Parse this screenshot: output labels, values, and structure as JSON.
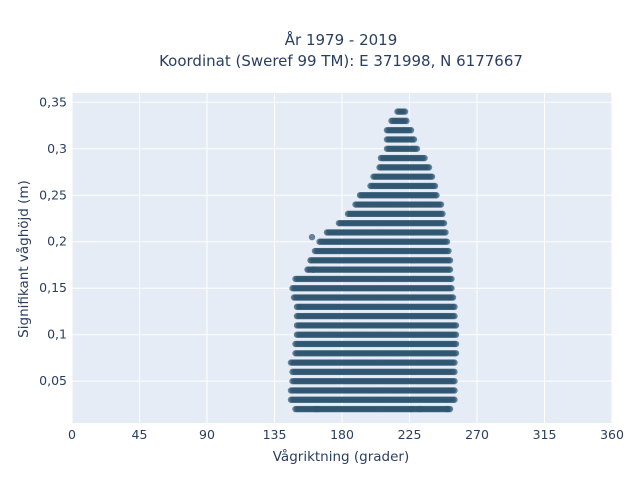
{
  "chart_data": {
    "type": "scatter",
    "title_lines": [
      "År 1979 - 2019",
      "Koordinat (Sweref 99 TM): E 371998, N 6177667"
    ],
    "xlabel": "Vågriktning (grader)",
    "ylabel": "Signifikant våghöjd (m)",
    "xlim": [
      0,
      360
    ],
    "ylim": [
      0.005,
      0.36
    ],
    "xticks": [
      0,
      45,
      90,
      135,
      180,
      225,
      270,
      315,
      360
    ],
    "xtick_labels": [
      "0",
      "45",
      "90",
      "135",
      "180",
      "225",
      "270",
      "315",
      "360"
    ],
    "yticks": [
      0.05,
      0.1,
      0.15,
      0.2,
      0.25,
      0.3,
      0.35
    ],
    "ytick_labels": [
      "0,05",
      "0,1",
      "0,15",
      "0,2",
      "0,25",
      "0,3",
      "0,35"
    ],
    "grid": true,
    "background": "#e5ecf6",
    "marker_color": "#2f5670",
    "envelope": [
      {
        "y": 0.02,
        "x_min": 149,
        "x_max": 252
      },
      {
        "y": 0.03,
        "x_min": 146,
        "x_max": 255
      },
      {
        "y": 0.04,
        "x_min": 146,
        "x_max": 255
      },
      {
        "y": 0.05,
        "x_min": 147,
        "x_max": 255
      },
      {
        "y": 0.06,
        "x_min": 147,
        "x_max": 255
      },
      {
        "y": 0.07,
        "x_min": 146,
        "x_max": 255
      },
      {
        "y": 0.08,
        "x_min": 149,
        "x_max": 256
      },
      {
        "y": 0.09,
        "x_min": 149,
        "x_max": 256
      },
      {
        "y": 0.1,
        "x_min": 150,
        "x_max": 256
      },
      {
        "y": 0.11,
        "x_min": 150,
        "x_max": 256
      },
      {
        "y": 0.12,
        "x_min": 150,
        "x_max": 255
      },
      {
        "y": 0.13,
        "x_min": 150,
        "x_max": 255
      },
      {
        "y": 0.14,
        "x_min": 148,
        "x_max": 254
      },
      {
        "y": 0.15,
        "x_min": 147,
        "x_max": 253
      },
      {
        "y": 0.16,
        "x_min": 149,
        "x_max": 253
      },
      {
        "y": 0.17,
        "x_min": 157,
        "x_max": 252
      },
      {
        "y": 0.18,
        "x_min": 159,
        "x_max": 252
      },
      {
        "y": 0.19,
        "x_min": 163,
        "x_max": 251
      },
      {
        "y": 0.2,
        "x_min": 165,
        "x_max": 250
      },
      {
        "y": 0.21,
        "x_min": 170,
        "x_max": 249
      },
      {
        "y": 0.22,
        "x_min": 178,
        "x_max": 248
      },
      {
        "y": 0.23,
        "x_min": 184,
        "x_max": 247
      },
      {
        "y": 0.24,
        "x_min": 189,
        "x_max": 246
      },
      {
        "y": 0.25,
        "x_min": 192,
        "x_max": 243
      },
      {
        "y": 0.26,
        "x_min": 199,
        "x_max": 242
      },
      {
        "y": 0.27,
        "x_min": 201,
        "x_max": 240
      },
      {
        "y": 0.28,
        "x_min": 205,
        "x_max": 238
      },
      {
        "y": 0.29,
        "x_min": 206,
        "x_max": 235
      },
      {
        "y": 0.3,
        "x_min": 210,
        "x_max": 230
      },
      {
        "y": 0.31,
        "x_min": 210,
        "x_max": 228
      },
      {
        "y": 0.32,
        "x_min": 210,
        "x_max": 226
      },
      {
        "y": 0.33,
        "x_min": 213,
        "x_max": 223
      },
      {
        "y": 0.34,
        "x_min": 217,
        "x_max": 222
      }
    ],
    "outliers": [
      {
        "x": 162,
        "y": 0.02
      },
      {
        "x": 164,
        "y": 0.02
      },
      {
        "x": 226,
        "y": 0.02
      },
      {
        "x": 232,
        "y": 0.02
      },
      {
        "x": 250,
        "y": 0.02
      },
      {
        "x": 161,
        "y": 0.17
      },
      {
        "x": 162,
        "y": 0.19
      },
      {
        "x": 160,
        "y": 0.205
      }
    ]
  }
}
